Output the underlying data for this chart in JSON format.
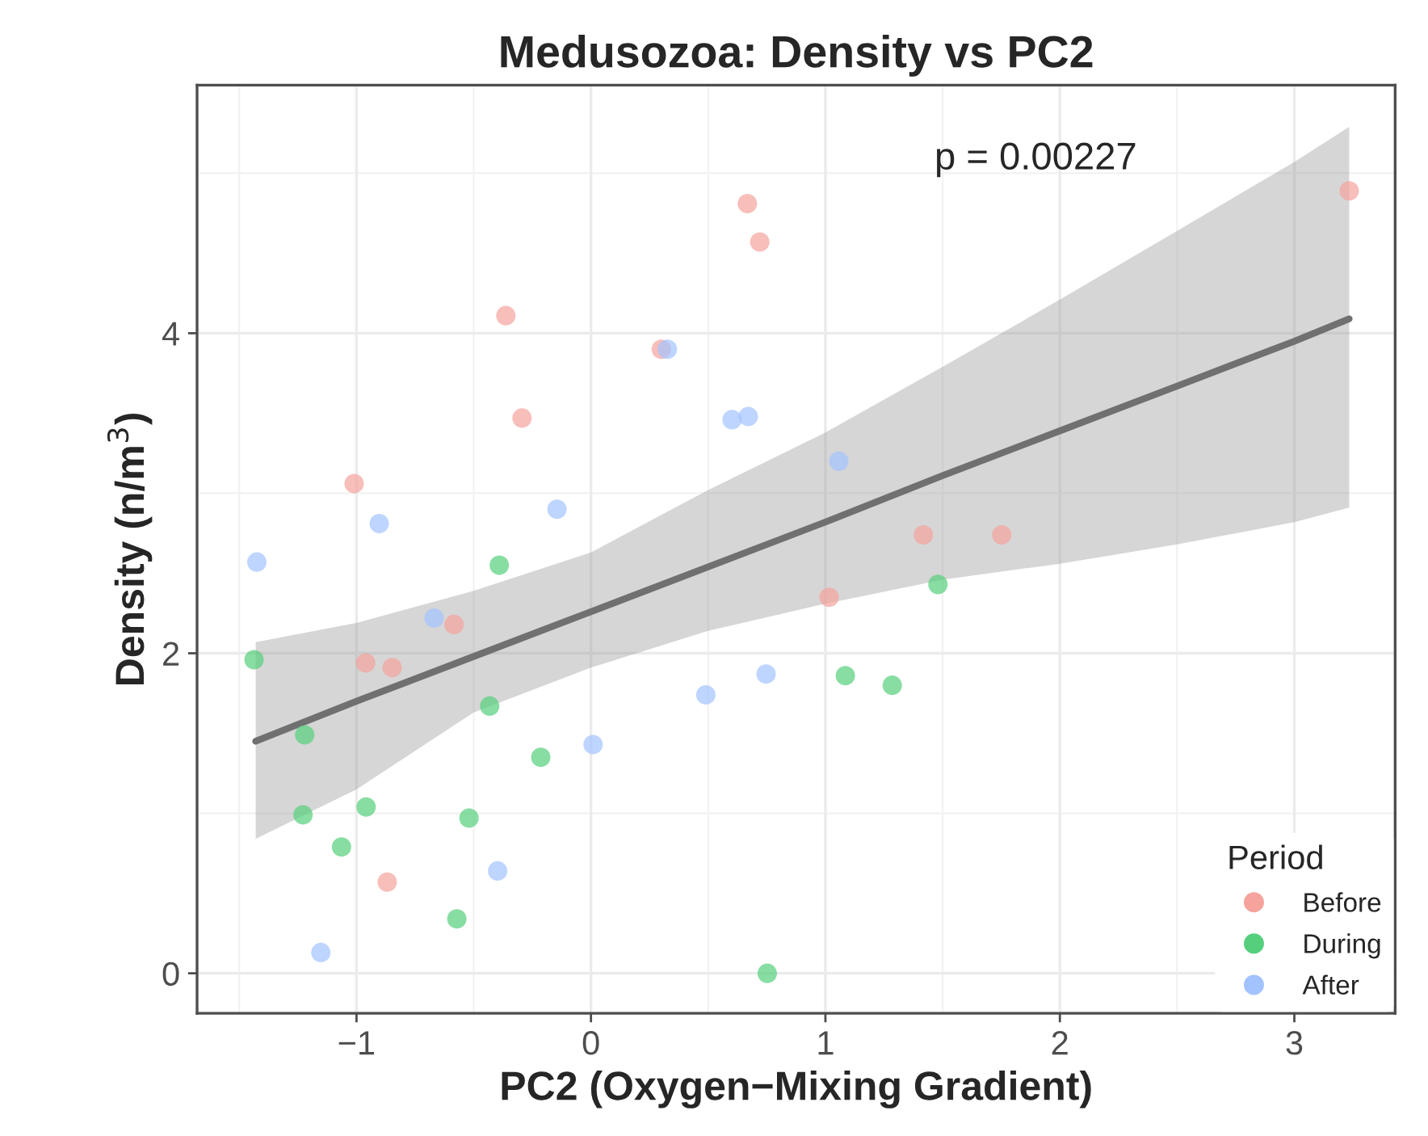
{
  "chart_data": {
    "type": "scatter",
    "title": "Medusozoa: Density vs PC2",
    "xlabel": "PC2 (Oxygen−Mixing Gradient)",
    "ylabel": "Density (n/m$^{3}$)",
    "legend_title": "Period",
    "legend": "bottom right",
    "grid": true,
    "marker": "circle",
    "xlim": [
      -1.68,
      3.43
    ],
    "ylim": [
      -0.25,
      5.55
    ],
    "xticks": [
      {
        "value": -1,
        "label": "−1"
      },
      0,
      1,
      2,
      3
    ],
    "yticks": [
      0,
      2,
      4
    ],
    "annotations": [
      "p = 0.00227"
    ],
    "series": [
      {
        "name": "Before",
        "color": "#f5a39c",
        "x": [
          0.667,
          0.72,
          -0.363,
          0.3,
          -0.294,
          -1.01,
          -0.584,
          -0.961,
          -0.848,
          -0.869,
          3.234,
          1.418,
          1.752,
          1.016
        ],
        "values": [
          4.81,
          4.57,
          4.11,
          3.9,
          3.47,
          3.06,
          2.18,
          1.94,
          1.91,
          0.57,
          4.89,
          2.74,
          2.74,
          2.35
        ]
      },
      {
        "name": "During",
        "color": "#55cf7c",
        "x": [
          -0.391,
          -1.437,
          -0.432,
          -1.221,
          -0.214,
          -1.228,
          -0.959,
          -0.52,
          -1.064,
          -0.572,
          0.752,
          1.48,
          1.085,
          1.285
        ],
        "values": [
          2.55,
          1.96,
          1.67,
          1.49,
          1.35,
          0.99,
          1.04,
          0.97,
          0.79,
          0.34,
          0.0,
          2.43,
          1.86,
          1.8
        ]
      },
      {
        "name": "After",
        "color": "#a3c3ff",
        "x": [
          0.326,
          0.602,
          0.671,
          -0.145,
          -0.903,
          -1.425,
          -0.669,
          0.747,
          0.49,
          0.009,
          -0.398,
          -1.152,
          1.057
        ],
        "values": [
          3.9,
          3.46,
          3.48,
          2.9,
          2.81,
          2.57,
          2.22,
          1.87,
          1.74,
          1.43,
          0.64,
          0.13,
          3.2
        ]
      },
      {
        "type": "line",
        "marker": "none",
        "color": "#707070",
        "x": [
          -1.43,
          -1,
          -0.5,
          0,
          0.5,
          1,
          1.5,
          2,
          2.5,
          3,
          3.234
        ],
        "values": [
          1.45,
          1.7,
          1.98,
          2.26,
          2.54,
          2.82,
          3.11,
          3.39,
          3.67,
          3.95,
          4.09
        ],
        "lower": [
          0.84,
          1.15,
          1.63,
          1.91,
          2.14,
          2.31,
          2.46,
          2.56,
          2.68,
          2.82,
          2.91
        ],
        "upper": [
          2.07,
          2.19,
          2.39,
          2.63,
          3.02,
          3.38,
          3.79,
          4.21,
          4.64,
          5.07,
          5.29
        ]
      }
    ]
  }
}
